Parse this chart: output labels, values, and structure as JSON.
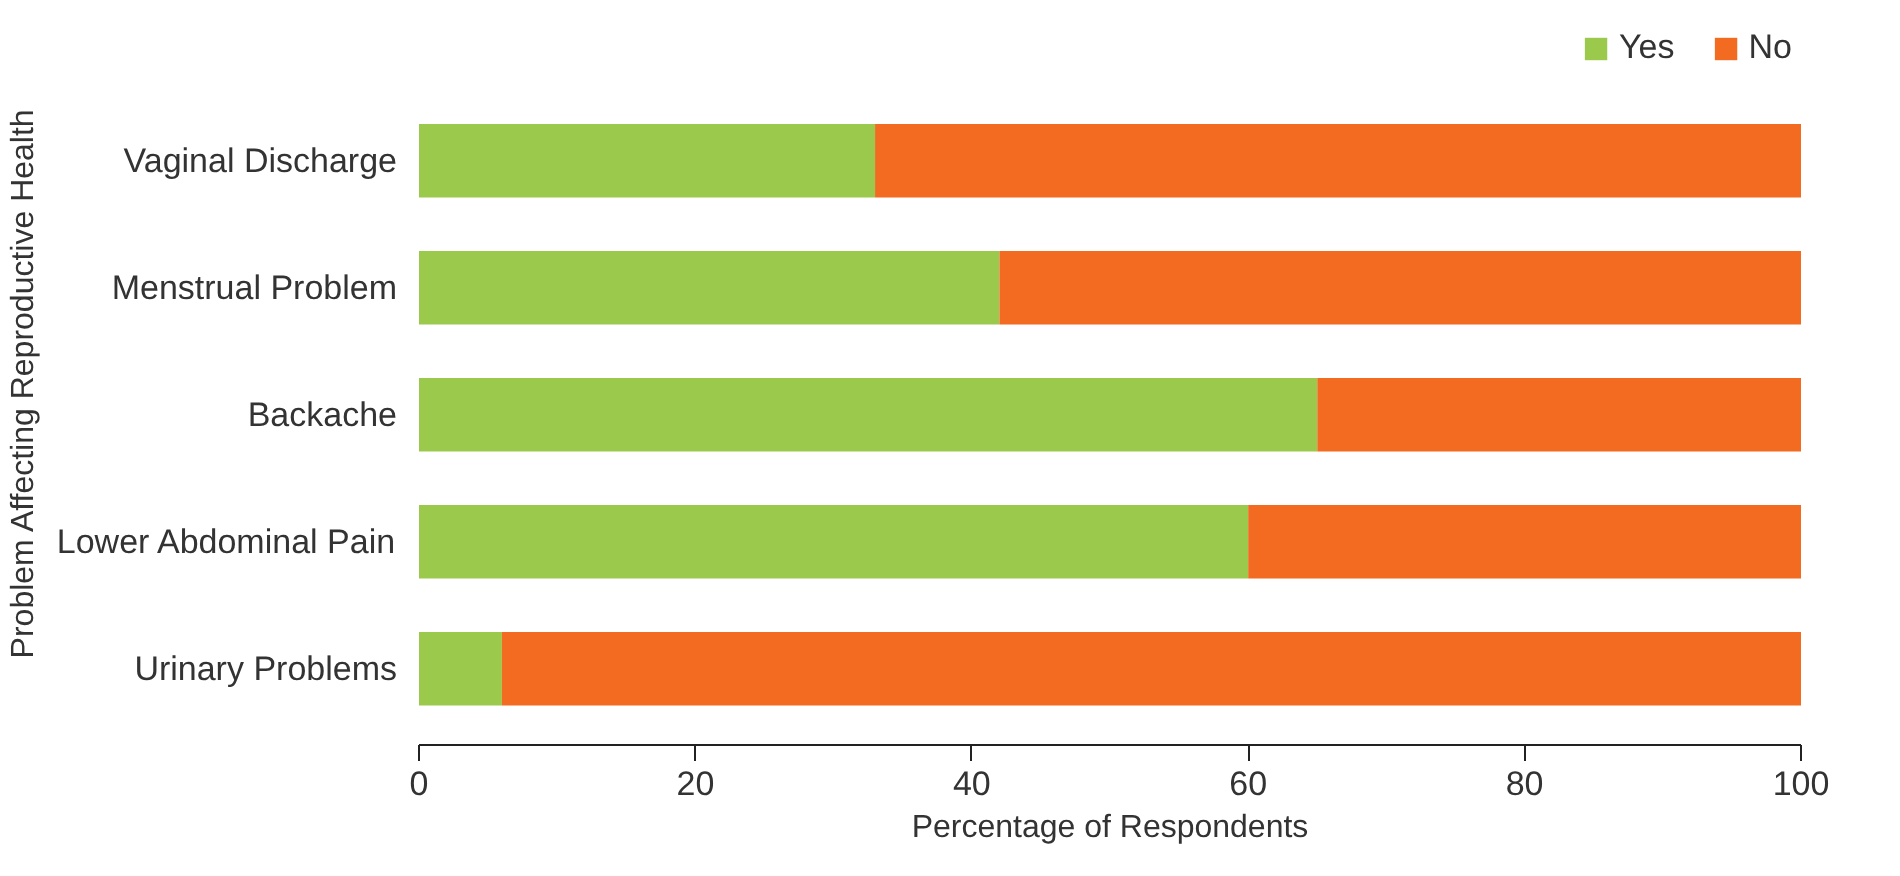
{
  "chart_data": {
    "type": "bar",
    "orientation": "horizontal",
    "stacked": true,
    "categories": [
      "Vaginal Discharge",
      "Menstrual Problem",
      "Backache",
      "Lower Abdominal Pain",
      "Urinary Problems"
    ],
    "series": [
      {
        "name": "Yes",
        "color": "#9bc94b",
        "values": [
          33,
          42,
          65,
          60,
          6
        ]
      },
      {
        "name": "No",
        "color": "#f26b21",
        "values": [
          67,
          58,
          35,
          40,
          94
        ]
      }
    ],
    "xlim": [
      0,
      100
    ],
    "xticks": [
      0,
      20,
      40,
      60,
      80,
      100
    ],
    "xlabel": "Percentage of Respondents",
    "ylabel": "Problem Affecting Reproductive Health",
    "grid": false,
    "legend": "top right"
  }
}
